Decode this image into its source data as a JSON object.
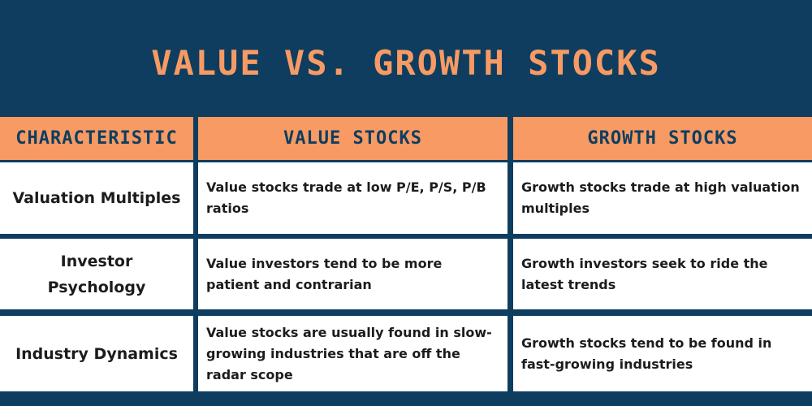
{
  "title": "VALUE VS. GROWTH STOCKS",
  "table": {
    "headers": [
      "CHARACTERISTIC",
      "VALUE STOCKS",
      "GROWTH STOCKS"
    ],
    "rows": [
      {
        "characteristic": "Valuation Multiples",
        "value": "Value stocks trade at low P/E, P/S, P/B ratios",
        "growth": "Growth stocks trade at high valuation multiples"
      },
      {
        "characteristic": "Investor Psychology",
        "value": "Value investors tend to be more patient and contrarian",
        "growth": "Growth investors seek to ride the latest trends"
      },
      {
        "characteristic": "Industry Dynamics",
        "value": "Value stocks are usually found in slow-growing industries that are off the radar scope",
        "growth": "Growth stocks tend to be found in fast-growing industries"
      }
    ]
  },
  "colors": {
    "background": "#0e3d5f",
    "accent": "#f79a63",
    "cell": "#ffffff",
    "text": "#1c1c1c"
  }
}
